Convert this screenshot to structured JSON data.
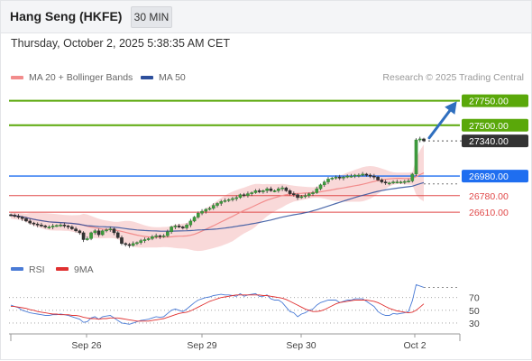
{
  "header": {
    "title": "Hang Seng (HKFE)",
    "timeframe": "30 MIN"
  },
  "datetime": "Thursday, October 2, 2025 5:38:35 AM CET",
  "legend": {
    "ma20_label": "MA 20 + Bollinger Bands",
    "ma50_label": "MA 50",
    "credit": "Research © 2025 Trading Central",
    "ma20_color": "#f28c8c",
    "ma50_color": "#2d4f9c"
  },
  "price_levels": [
    {
      "label": "27750.00",
      "value": 27750,
      "kind": "resistance",
      "color": "#5aa80a"
    },
    {
      "label": "27500.00",
      "value": 27500,
      "kind": "resistance",
      "color": "#5aa80a"
    },
    {
      "label": "27340.00",
      "value": 27340,
      "kind": "last",
      "color": "#333333"
    },
    {
      "label": "26980.00",
      "value": 26980,
      "kind": "pivot",
      "color": "#1f6ef0"
    },
    {
      "label": "26780.00",
      "value": 26780,
      "kind": "support",
      "color": "#e04848"
    },
    {
      "label": "26610.00",
      "value": 26610,
      "kind": "support",
      "color": "#e04848"
    }
  ],
  "rsi": {
    "legend_rsi": "RSI",
    "legend_ma": "9MA",
    "rsi_color": "#4a7bd6",
    "ma_color": "#e03030",
    "levels": [
      "70",
      "50",
      "30"
    ]
  },
  "x_labels": [
    "Sep 26",
    "Sep 29",
    "Sep 30",
    "Oct 2"
  ],
  "chart_data": {
    "type": "candlestick",
    "title": "Hang Seng (HKFE)",
    "timeframe": "30 MIN",
    "y_range": [
      26150,
      27950
    ],
    "series": [
      {
        "name": "MA 20 + Bollinger Bands",
        "color": "#f28c8c"
      },
      {
        "name": "MA 50",
        "color": "#2d4f9c"
      }
    ],
    "close": [
      26580,
      26570,
      26560,
      26545,
      26520,
      26500,
      26490,
      26480,
      26470,
      26460,
      26460,
      26470,
      26475,
      26480,
      26470,
      26460,
      26440,
      26420,
      26400,
      26330,
      26340,
      26400,
      26420,
      26380,
      26420,
      26430,
      26440,
      26400,
      26350,
      26290,
      26280,
      26270,
      26290,
      26300,
      26320,
      26330,
      26340,
      26360,
      26370,
      26360,
      26370,
      26410,
      26460,
      26470,
      26460,
      26450,
      26480,
      26520,
      26560,
      26600,
      26620,
      26640,
      26650,
      26680,
      26700,
      26720,
      26730,
      26740,
      26750,
      26760,
      26790,
      26780,
      26800,
      26810,
      26830,
      26820,
      26830,
      26850,
      26830,
      26830,
      26850,
      26860,
      26830,
      26800,
      26790,
      26760,
      26770,
      26780,
      26800,
      26810,
      26850,
      26890,
      26920,
      26950,
      26960,
      26970,
      26960,
      26970,
      26980,
      26980,
      26990,
      26990,
      27000,
      26990,
      26980,
      26970,
      26940,
      26920,
      26910,
      26910,
      26920,
      26920,
      26920,
      26925,
      26930,
      27000,
      27350,
      27360,
      27340
    ],
    "rsi": [
      58,
      56,
      54,
      50,
      48,
      46,
      45,
      44,
      43,
      42,
      42,
      43,
      43,
      44,
      43,
      42,
      40,
      38,
      36,
      31,
      32,
      38,
      40,
      36,
      40,
      41,
      42,
      38,
      34,
      30,
      29,
      28,
      30,
      32,
      34,
      35,
      36,
      38,
      40,
      39,
      40,
      45,
      50,
      52,
      50,
      48,
      52,
      57,
      62,
      66,
      68,
      70,
      71,
      73,
      74,
      75,
      74,
      74,
      73,
      72,
      76,
      72,
      74,
      75,
      76,
      72,
      72,
      74,
      68,
      66,
      66,
      62,
      55,
      48,
      46,
      40,
      44,
      46,
      50,
      52,
      58,
      62,
      64,
      66,
      66,
      66,
      62,
      64,
      66,
      66,
      68,
      68,
      68,
      64,
      60,
      56,
      48,
      44,
      42,
      42,
      45,
      44,
      45,
      46,
      48,
      65,
      90,
      88,
      86
    ],
    "rsi_ma": [
      56,
      56,
      55,
      54,
      53,
      51,
      50,
      48,
      47,
      46,
      45,
      44,
      44,
      43,
      43,
      43,
      42,
      42,
      41,
      39,
      38,
      37,
      37,
      36,
      37,
      37,
      38,
      38,
      38,
      37,
      36,
      35,
      34,
      33,
      33,
      33,
      33,
      34,
      35,
      36,
      37,
      39,
      41,
      43,
      45,
      46,
      47,
      49,
      52,
      55,
      58,
      61,
      64,
      66,
      68,
      70,
      71,
      72,
      73,
      74,
      74,
      74,
      74,
      74,
      74,
      74,
      73,
      73,
      72,
      71,
      70,
      69,
      67,
      64,
      61,
      58,
      55,
      52,
      50,
      48,
      48,
      49,
      51,
      54,
      57,
      60,
      62,
      63,
      64,
      65,
      66,
      66,
      66,
      66,
      65,
      64,
      62,
      59,
      56,
      53,
      51,
      49,
      48,
      47,
      46,
      47,
      50,
      55,
      60
    ]
  }
}
